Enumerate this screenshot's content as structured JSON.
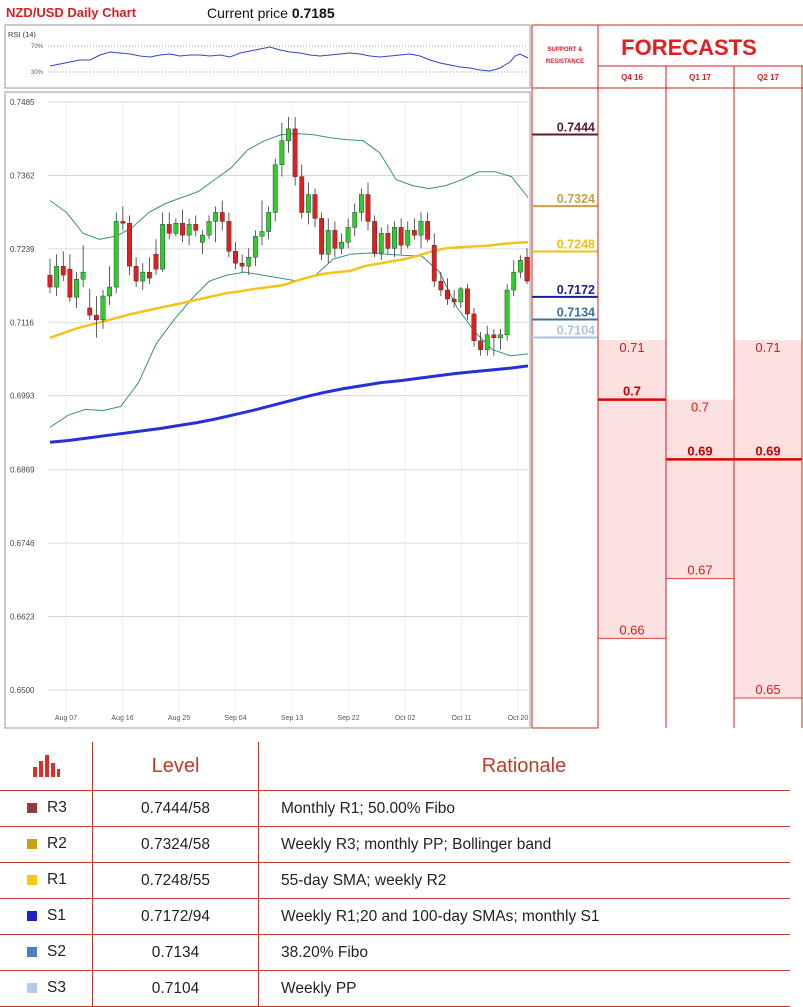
{
  "header": {
    "title": "NZD/USD Daily Chart",
    "price_label": "Current price",
    "price_value": "0.7185"
  },
  "rsi": {
    "label": "RSI (14)",
    "top_label": "70%",
    "bottom_label": "30%"
  },
  "chart_data": [
    {
      "type": "line",
      "title": "NZD/USD Daily Chart",
      "note": "Candlestick chart (daily OHLC) with 55-day SMA, 100-day SMA and Bollinger bands",
      "y_ticks": [
        "0.7485",
        "0.7362",
        "0.7239",
        "0.7116",
        "0.6993",
        "0.6869",
        "0.6746",
        "0.6623",
        "0.6500"
      ],
      "ylim": [
        0.65,
        0.7485
      ],
      "x_ticks": [
        "Aug 07",
        "Aug 16",
        "Aug 25",
        "Sep 04",
        "Sep 13",
        "Sep 22",
        "Oct 02",
        "Oct 11",
        "Oct 20"
      ],
      "candles": [
        {
          "o": 0.7195,
          "h": 0.7222,
          "l": 0.7165,
          "c": 0.7175
        },
        {
          "o": 0.7175,
          "h": 0.723,
          "l": 0.716,
          "c": 0.721
        },
        {
          "o": 0.721,
          "h": 0.7235,
          "l": 0.7185,
          "c": 0.7195
        },
        {
          "o": 0.7205,
          "h": 0.723,
          "l": 0.715,
          "c": 0.7158
        },
        {
          "o": 0.7158,
          "h": 0.72,
          "l": 0.714,
          "c": 0.7188
        },
        {
          "o": 0.7188,
          "h": 0.7245,
          "l": 0.7175,
          "c": 0.72
        },
        {
          "o": 0.714,
          "h": 0.7172,
          "l": 0.712,
          "c": 0.7128
        },
        {
          "o": 0.7128,
          "h": 0.716,
          "l": 0.709,
          "c": 0.712
        },
        {
          "o": 0.712,
          "h": 0.717,
          "l": 0.7105,
          "c": 0.716
        },
        {
          "o": 0.716,
          "h": 0.721,
          "l": 0.7145,
          "c": 0.7175
        },
        {
          "o": 0.7175,
          "h": 0.73,
          "l": 0.7165,
          "c": 0.7285
        },
        {
          "o": 0.7285,
          "h": 0.731,
          "l": 0.727,
          "c": 0.7282
        },
        {
          "o": 0.7282,
          "h": 0.7295,
          "l": 0.7195,
          "c": 0.721
        },
        {
          "o": 0.721,
          "h": 0.7225,
          "l": 0.7175,
          "c": 0.7185
        },
        {
          "o": 0.7185,
          "h": 0.7215,
          "l": 0.717,
          "c": 0.72
        },
        {
          "o": 0.72,
          "h": 0.7225,
          "l": 0.718,
          "c": 0.719
        },
        {
          "o": 0.723,
          "h": 0.7255,
          "l": 0.7195,
          "c": 0.7205
        },
        {
          "o": 0.7205,
          "h": 0.73,
          "l": 0.72,
          "c": 0.728
        },
        {
          "o": 0.728,
          "h": 0.73,
          "l": 0.7255,
          "c": 0.7265
        },
        {
          "o": 0.7265,
          "h": 0.729,
          "l": 0.726,
          "c": 0.7282
        },
        {
          "o": 0.7282,
          "h": 0.7305,
          "l": 0.725,
          "c": 0.7262
        },
        {
          "o": 0.7262,
          "h": 0.729,
          "l": 0.7245,
          "c": 0.728
        },
        {
          "o": 0.728,
          "h": 0.7295,
          "l": 0.726,
          "c": 0.727
        },
        {
          "o": 0.725,
          "h": 0.727,
          "l": 0.723,
          "c": 0.7262
        },
        {
          "o": 0.7262,
          "h": 0.7295,
          "l": 0.7255,
          "c": 0.7285
        },
        {
          "o": 0.7285,
          "h": 0.731,
          "l": 0.725,
          "c": 0.73
        },
        {
          "o": 0.73,
          "h": 0.732,
          "l": 0.727,
          "c": 0.7285
        },
        {
          "o": 0.7285,
          "h": 0.73,
          "l": 0.7225,
          "c": 0.7235
        },
        {
          "o": 0.7235,
          "h": 0.725,
          "l": 0.7205,
          "c": 0.7215
        },
        {
          "o": 0.7215,
          "h": 0.723,
          "l": 0.72,
          "c": 0.721
        },
        {
          "o": 0.721,
          "h": 0.724,
          "l": 0.7195,
          "c": 0.7225
        },
        {
          "o": 0.7225,
          "h": 0.727,
          "l": 0.721,
          "c": 0.726
        },
        {
          "o": 0.726,
          "h": 0.732,
          "l": 0.7245,
          "c": 0.7268
        },
        {
          "o": 0.7268,
          "h": 0.731,
          "l": 0.7255,
          "c": 0.73
        },
        {
          "o": 0.73,
          "h": 0.739,
          "l": 0.7285,
          "c": 0.738
        },
        {
          "o": 0.738,
          "h": 0.745,
          "l": 0.736,
          "c": 0.742
        },
        {
          "o": 0.742,
          "h": 0.746,
          "l": 0.74,
          "c": 0.744
        },
        {
          "o": 0.744,
          "h": 0.746,
          "l": 0.7345,
          "c": 0.736
        },
        {
          "o": 0.736,
          "h": 0.738,
          "l": 0.729,
          "c": 0.73
        },
        {
          "o": 0.73,
          "h": 0.735,
          "l": 0.728,
          "c": 0.733
        },
        {
          "o": 0.733,
          "h": 0.734,
          "l": 0.7275,
          "c": 0.729
        },
        {
          "o": 0.729,
          "h": 0.73,
          "l": 0.722,
          "c": 0.723
        },
        {
          "o": 0.723,
          "h": 0.729,
          "l": 0.7215,
          "c": 0.727
        },
        {
          "o": 0.727,
          "h": 0.7285,
          "l": 0.7225,
          "c": 0.724
        },
        {
          "o": 0.724,
          "h": 0.7265,
          "l": 0.723,
          "c": 0.725
        },
        {
          "o": 0.725,
          "h": 0.729,
          "l": 0.724,
          "c": 0.7275
        },
        {
          "o": 0.7275,
          "h": 0.7315,
          "l": 0.726,
          "c": 0.73
        },
        {
          "o": 0.73,
          "h": 0.734,
          "l": 0.7285,
          "c": 0.733
        },
        {
          "o": 0.733,
          "h": 0.735,
          "l": 0.727,
          "c": 0.7285
        },
        {
          "o": 0.7285,
          "h": 0.7295,
          "l": 0.7225,
          "c": 0.7232
        },
        {
          "o": 0.7232,
          "h": 0.7275,
          "l": 0.722,
          "c": 0.7265
        },
        {
          "o": 0.7265,
          "h": 0.728,
          "l": 0.723,
          "c": 0.724
        },
        {
          "o": 0.724,
          "h": 0.7285,
          "l": 0.7225,
          "c": 0.7275
        },
        {
          "o": 0.7275,
          "h": 0.729,
          "l": 0.723,
          "c": 0.7245
        },
        {
          "o": 0.7245,
          "h": 0.7285,
          "l": 0.724,
          "c": 0.727
        },
        {
          "o": 0.727,
          "h": 0.729,
          "l": 0.7255,
          "c": 0.7262
        },
        {
          "o": 0.7262,
          "h": 0.73,
          "l": 0.724,
          "c": 0.7285
        },
        {
          "o": 0.7285,
          "h": 0.73,
          "l": 0.725,
          "c": 0.7255
        },
        {
          "o": 0.7245,
          "h": 0.7265,
          "l": 0.7175,
          "c": 0.7185
        },
        {
          "o": 0.7185,
          "h": 0.72,
          "l": 0.716,
          "c": 0.717
        },
        {
          "o": 0.717,
          "h": 0.719,
          "l": 0.7145,
          "c": 0.7155
        },
        {
          "o": 0.7155,
          "h": 0.717,
          "l": 0.714,
          "c": 0.715
        },
        {
          "o": 0.715,
          "h": 0.7175,
          "l": 0.714,
          "c": 0.7172
        },
        {
          "o": 0.7172,
          "h": 0.718,
          "l": 0.712,
          "c": 0.713
        },
        {
          "o": 0.713,
          "h": 0.714,
          "l": 0.7075,
          "c": 0.7085
        },
        {
          "o": 0.7085,
          "h": 0.71,
          "l": 0.706,
          "c": 0.707
        },
        {
          "o": 0.707,
          "h": 0.711,
          "l": 0.706,
          "c": 0.7095
        },
        {
          "o": 0.7095,
          "h": 0.7105,
          "l": 0.706,
          "c": 0.709
        },
        {
          "o": 0.709,
          "h": 0.7105,
          "l": 0.707,
          "c": 0.7095
        },
        {
          "o": 0.7095,
          "h": 0.718,
          "l": 0.7085,
          "c": 0.717
        },
        {
          "o": 0.717,
          "h": 0.722,
          "l": 0.716,
          "c": 0.72
        },
        {
          "o": 0.72,
          "h": 0.7228,
          "l": 0.719,
          "c": 0.722
        },
        {
          "o": 0.7225,
          "h": 0.724,
          "l": 0.718,
          "c": 0.7185
        }
      ],
      "sma55": [
        0.709,
        0.7098,
        0.7106,
        0.7112,
        0.7118,
        0.7124,
        0.713,
        0.7135,
        0.714,
        0.7145,
        0.715,
        0.7155,
        0.716,
        0.7165,
        0.7168,
        0.7172,
        0.7175,
        0.7178,
        0.7185,
        0.7192,
        0.7197,
        0.72,
        0.7202,
        0.721,
        0.7214,
        0.7218,
        0.7222,
        0.7228,
        0.7235,
        0.724,
        0.7242,
        0.7243,
        0.7244,
        0.7247,
        0.7249,
        0.725
      ],
      "sma100": [
        0.6915,
        0.6918,
        0.6922,
        0.6926,
        0.693,
        0.6934,
        0.6938,
        0.6943,
        0.6948,
        0.6954,
        0.6961,
        0.6968,
        0.6976,
        0.6984,
        0.6992,
        0.6999,
        0.7005,
        0.701,
        0.7015,
        0.7018,
        0.7022,
        0.7026,
        0.703,
        0.7033,
        0.7036,
        0.7039,
        0.7043
      ],
      "bollinger_upper": [
        0.732,
        0.73,
        0.7265,
        0.7255,
        0.726,
        0.7275,
        0.73,
        0.7315,
        0.7325,
        0.7335,
        0.7355,
        0.7375,
        0.7405,
        0.742,
        0.743,
        0.7432,
        0.743,
        0.7425,
        0.7422,
        0.742,
        0.74,
        0.7355,
        0.7345,
        0.734,
        0.7345,
        0.7355,
        0.7368,
        0.7368,
        0.736,
        0.7325
      ],
      "bollinger_lower": [
        0.694,
        0.696,
        0.697,
        0.6968,
        0.6975,
        0.7015,
        0.708,
        0.712,
        0.7155,
        0.7185,
        0.7195,
        0.72,
        0.7195,
        0.719,
        0.7185,
        0.7195,
        0.7222,
        0.723,
        0.7232,
        0.723,
        0.7228,
        0.7227,
        0.72,
        0.714,
        0.71,
        0.707,
        0.706,
        0.7063
      ],
      "levels": [
        {
          "value": 0.7444,
          "label": "0.7444",
          "color": "#5c1a2e"
        },
        {
          "value": 0.7324,
          "label": "0.7324",
          "color": "#c9a04a"
        },
        {
          "value": 0.7248,
          "label": "0.7248",
          "color": "#f2c012"
        },
        {
          "value": 0.7172,
          "label": "0.7172",
          "color": "#1c1ca0"
        },
        {
          "value": 0.7134,
          "label": "0.7134",
          "color": "#3a6fa0"
        },
        {
          "value": 0.7104,
          "label": "0.7104",
          "color": "#a9c4d9"
        }
      ]
    },
    {
      "type": "bar",
      "title": "FORECASTS",
      "categories": [
        "Q4 16",
        "Q1 17",
        "Q2 17"
      ],
      "values": [
        0.7,
        0.69,
        0.69
      ],
      "ranges": [
        {
          "high": 0.71,
          "low": 0.66,
          "point": 0.7
        },
        {
          "high": 0.7,
          "low": 0.67,
          "point": 0.69
        },
        {
          "high": 0.71,
          "low": 0.65,
          "point": 0.69
        }
      ]
    }
  ],
  "forecast_panel": {
    "title": "FORECASTS",
    "sr_label": "SUPPORT & RESISTANCE",
    "columns": [
      {
        "quarter": "Q4 16",
        "high": "0.71",
        "point": "0.7",
        "low": "0.66"
      },
      {
        "quarter": "Q1 17",
        "high": "0.7",
        "point": "0.69",
        "low": "0.67"
      },
      {
        "quarter": "Q2 17",
        "high": "0.71",
        "point": "0.69",
        "low": "0.65"
      }
    ]
  },
  "levels_table": {
    "icon": "bar-chart-icon",
    "header_level": "Level",
    "header_rationale": "Rationale",
    "rows": [
      {
        "name": "R3",
        "level": "0.7444/58",
        "rationale": "Monthly R1; 50.00% Fibo",
        "color": "#8e3b42"
      },
      {
        "name": "R2",
        "level": "0.7324/58",
        "rationale": "Weekly R3; monthly PP; Bollinger band",
        "color": "#c9a10e"
      },
      {
        "name": "R1",
        "level": "0.7248/55",
        "rationale": "55-day SMA; weekly R2",
        "color": "#f7c813"
      },
      {
        "name": "S1",
        "level": "0.7172/94",
        "rationale": "Weekly R1;20 and 100-day SMAs; monthly S1",
        "color": "#1f24c9"
      },
      {
        "name": "S2",
        "level": "0.7134",
        "rationale": "38.20% Fibo",
        "color": "#4a7fc4"
      },
      {
        "name": "S3",
        "level": "0.7104",
        "rationale": "Weekly PP",
        "color": "#b3cbe6"
      }
    ]
  }
}
